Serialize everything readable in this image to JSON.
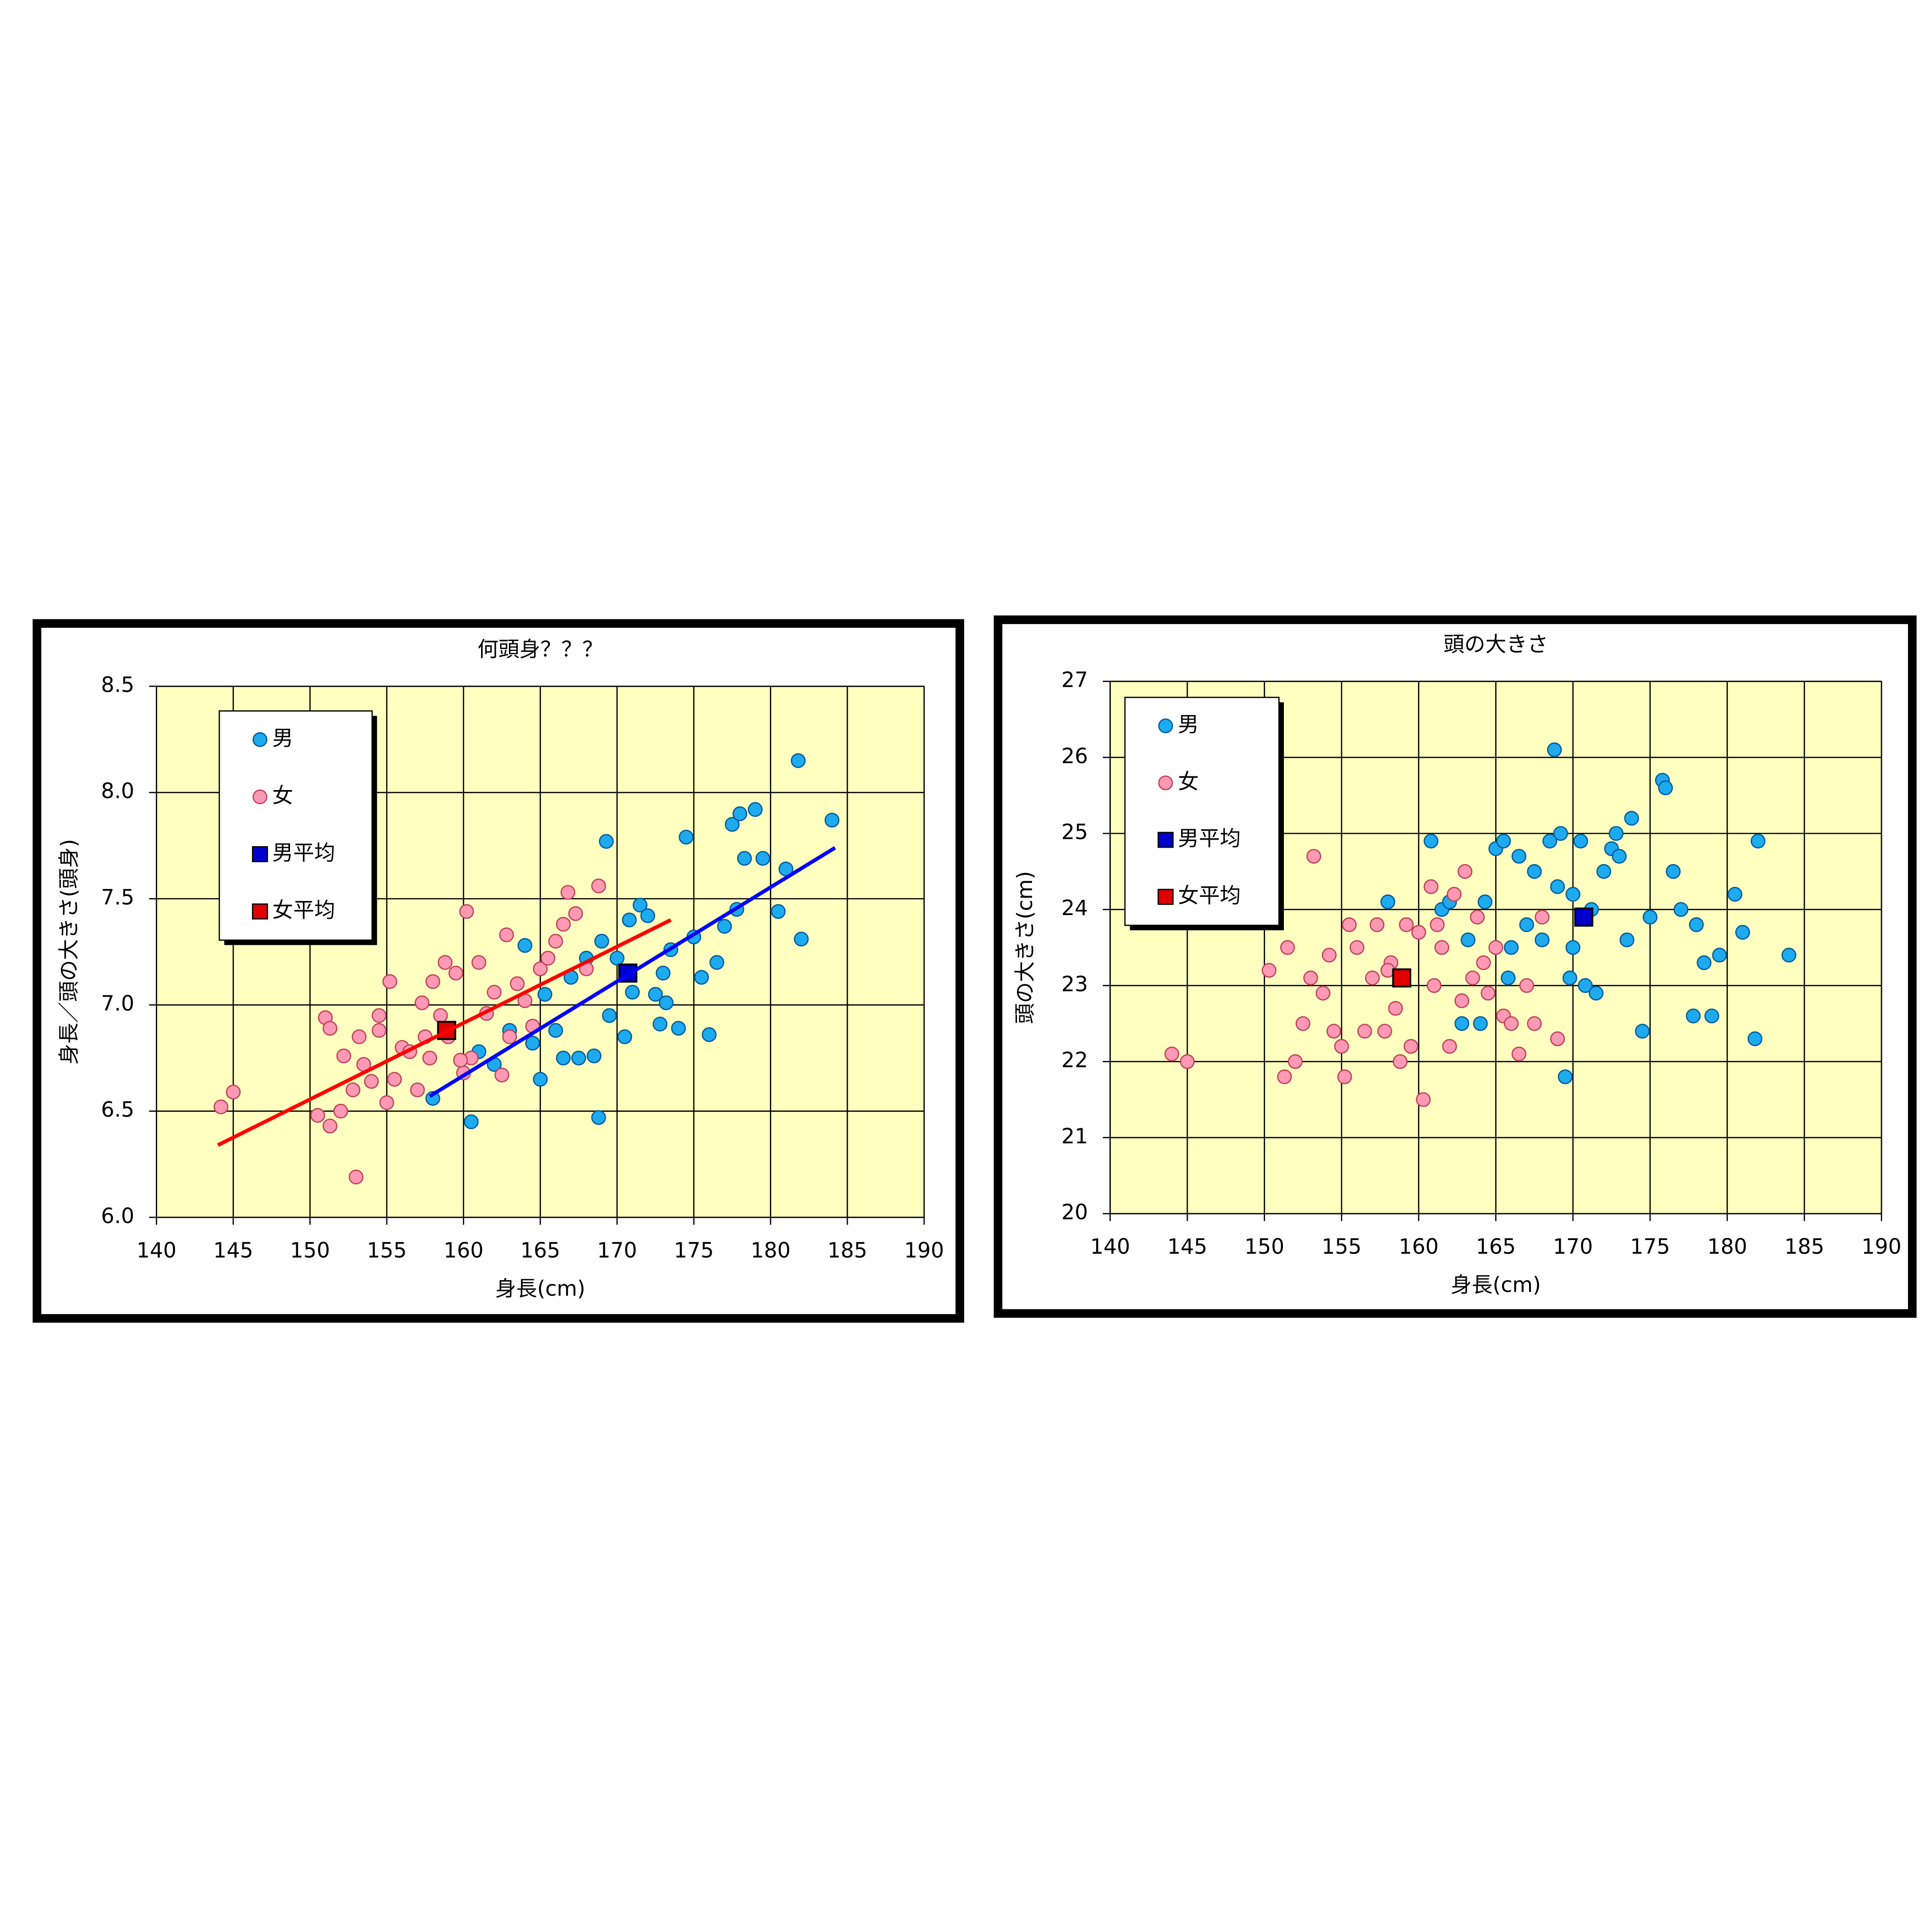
{
  "chart_data": [
    {
      "type": "scatter",
      "title": "何頭身？？？",
      "x_label": "身長(cm)",
      "y_label": "身長／頭の大きさ(頭身)",
      "xlim": [
        140,
        190
      ],
      "xticks": [
        140,
        145,
        150,
        155,
        160,
        165,
        170,
        175,
        180,
        185,
        190
      ],
      "ylim": [
        6,
        8.5
      ],
      "yticks": [
        {
          "value": 6,
          "label": "6.0"
        },
        6.5,
        {
          "value": 7,
          "label": "7.0"
        },
        7.5,
        {
          "value": 8,
          "label": "8.0"
        },
        8.5
      ],
      "grid": true,
      "legend": "upper left",
      "series": [
        {
          "name": "男",
          "color": "#1eaaee",
          "marker": "circle",
          "x": [
            158,
            160.5,
            161,
            162,
            163,
            164,
            164.5,
            165,
            165.3,
            166,
            166.5,
            167,
            167.5,
            168,
            168.5,
            168.8,
            169,
            169.3,
            169.5,
            170,
            170.5,
            170.8,
            171,
            171.5,
            172,
            172.5,
            173,
            173.5,
            174,
            174.5,
            175,
            176,
            176.5,
            177,
            177.5,
            177.8,
            178.3,
            179,
            179.5,
            180.5,
            181,
            181.8,
            182,
            184,
            178,
            172.8,
            173.2,
            175.5
          ],
          "y": [
            6.56,
            6.45,
            6.78,
            6.72,
            6.88,
            7.28,
            6.82,
            6.65,
            7.05,
            6.88,
            6.75,
            7.13,
            6.75,
            7.22,
            6.76,
            6.47,
            7.3,
            7.77,
            6.95,
            7.22,
            6.85,
            7.4,
            7.06,
            7.47,
            7.42,
            7.05,
            7.15,
            7.26,
            6.89,
            7.79,
            7.32,
            6.86,
            7.2,
            7.37,
            7.85,
            7.45,
            7.69,
            7.92,
            7.69,
            7.44,
            7.64,
            8.15,
            7.31,
            7.87,
            7.9,
            6.91,
            7.01,
            7.13
          ]
        },
        {
          "name": "女",
          "color": "#ff99b4",
          "marker": "circle",
          "x": [
            144.2,
            145,
            153,
            151,
            151.3,
            150.5,
            151.3,
            152,
            152.2,
            152.8,
            153.2,
            153.5,
            154,
            154.5,
            154.5,
            155,
            155.2,
            155.5,
            156,
            156.5,
            157,
            157.3,
            157.8,
            158,
            158.5,
            158.8,
            159,
            159.5,
            160,
            160.2,
            160.5,
            161,
            161.5,
            162,
            162.5,
            162.8,
            163,
            163.5,
            164,
            164.5,
            165,
            165.5,
            166,
            166.5,
            166.8,
            167.3,
            168,
            168.8,
            157.5,
            159.8
          ],
          "y": [
            6.52,
            6.59,
            6.19,
            6.94,
            6.89,
            6.48,
            6.43,
            6.5,
            6.76,
            6.6,
            6.85,
            6.72,
            6.64,
            6.88,
            6.95,
            6.54,
            7.11,
            6.65,
            6.8,
            6.78,
            6.6,
            7.01,
            6.75,
            7.11,
            6.95,
            7.2,
            6.85,
            7.15,
            6.68,
            7.44,
            6.75,
            7.2,
            6.96,
            7.06,
            6.67,
            7.33,
            6.85,
            7.1,
            7.02,
            6.9,
            7.17,
            7.22,
            7.3,
            7.38,
            7.53,
            7.43,
            7.17,
            7.56,
            6.85,
            6.74
          ]
        },
        {
          "name": "男平均",
          "color": "#0000cc",
          "marker": "square",
          "x": [
            170.7
          ],
          "y": [
            7.15
          ]
        },
        {
          "name": "女平均",
          "color": "#e00000",
          "marker": "square",
          "x": [
            158.9
          ],
          "y": [
            6.88
          ]
        }
      ],
      "trend_lines": [
        {
          "color": "#ff0000",
          "x": [
            144,
            173.5
          ],
          "y": [
            6.34,
            7.4
          ]
        },
        {
          "color": "#0000ff",
          "x": [
            157.8,
            184.2
          ],
          "y": [
            6.57,
            7.74
          ]
        }
      ]
    },
    {
      "type": "scatter",
      "title": "頭の大きさ",
      "x_label": "身長(cm)",
      "y_label": "頭の大きさ(cm)",
      "xlim": [
        140,
        190
      ],
      "xticks": [
        140,
        145,
        150,
        155,
        160,
        165,
        170,
        175,
        180,
        185,
        190
      ],
      "ylim": [
        20,
        27
      ],
      "yticks": [
        20,
        21,
        22,
        23,
        24,
        25,
        26,
        27
      ],
      "grid": true,
      "legend": "upper left",
      "series": [
        {
          "name": "男",
          "color": "#1eaaee",
          "marker": "circle",
          "x": [
            158,
            160.8,
            161.5,
            162,
            162.8,
            163.2,
            164,
            164.3,
            165,
            165.5,
            165.8,
            166,
            166.5,
            167,
            167.5,
            168,
            168.5,
            168.8,
            169,
            169.2,
            169.5,
            169.8,
            170,
            170.5,
            170.8,
            171.2,
            171.5,
            172,
            172.5,
            172.8,
            173,
            173.5,
            173.8,
            174.5,
            175,
            175.8,
            176,
            176.5,
            177,
            177.8,
            178,
            178.5,
            179,
            179.5,
            180.5,
            181,
            181.8,
            182,
            184,
            170
          ],
          "y": [
            24.1,
            24.9,
            24,
            24.1,
            22.5,
            23.6,
            22.5,
            24.1,
            24.8,
            24.9,
            23.1,
            23.5,
            24.7,
            23.8,
            24.5,
            23.6,
            24.9,
            26.1,
            24.3,
            25,
            21.8,
            23.1,
            24.2,
            24.9,
            23,
            24,
            22.9,
            24.5,
            24.8,
            25,
            24.7,
            23.6,
            25.2,
            22.4,
            23.9,
            25.7,
            25.6,
            24.5,
            24,
            22.6,
            23.8,
            23.3,
            22.6,
            23.4,
            24.2,
            23.7,
            22.3,
            24.9,
            23.4,
            23.5
          ]
        },
        {
          "name": "女",
          "color": "#ff99b4",
          "marker": "circle",
          "x": [
            144,
            145,
            150.3,
            151.3,
            151.5,
            152,
            152.5,
            153,
            153.2,
            153.8,
            154.2,
            154.5,
            155,
            155.2,
            155.5,
            156,
            156.5,
            157,
            157.3,
            157.8,
            158.2,
            158.5,
            158.8,
            159.2,
            159.5,
            160,
            160.3,
            160.8,
            161,
            161.5,
            162,
            162.3,
            162.8,
            163,
            163.5,
            163.8,
            164.2,
            164.5,
            165,
            165.5,
            166,
            166.5,
            167,
            167.5,
            168,
            169,
            161.2,
            158
          ],
          "y": [
            22.1,
            22,
            23.2,
            21.8,
            23.5,
            22,
            22.5,
            23.1,
            24.7,
            22.9,
            23.4,
            22.4,
            22.2,
            21.8,
            23.8,
            23.5,
            22.4,
            23.1,
            23.8,
            22.4,
            23.3,
            22.7,
            22,
            23.8,
            22.2,
            23.7,
            21.5,
            24.3,
            23,
            23.5,
            22.2,
            24.2,
            22.8,
            24.5,
            23.1,
            23.9,
            23.3,
            22.9,
            23.5,
            22.6,
            22.5,
            22.1,
            23,
            22.5,
            23.9,
            22.3,
            23.8,
            23.2
          ]
        },
        {
          "name": "男平均",
          "color": "#0000cc",
          "marker": "square",
          "x": [
            170.7
          ],
          "y": [
            23.9
          ]
        },
        {
          "name": "女平均",
          "color": "#e00000",
          "marker": "square",
          "x": [
            158.9
          ],
          "y": [
            23.1
          ]
        }
      ]
    }
  ]
}
